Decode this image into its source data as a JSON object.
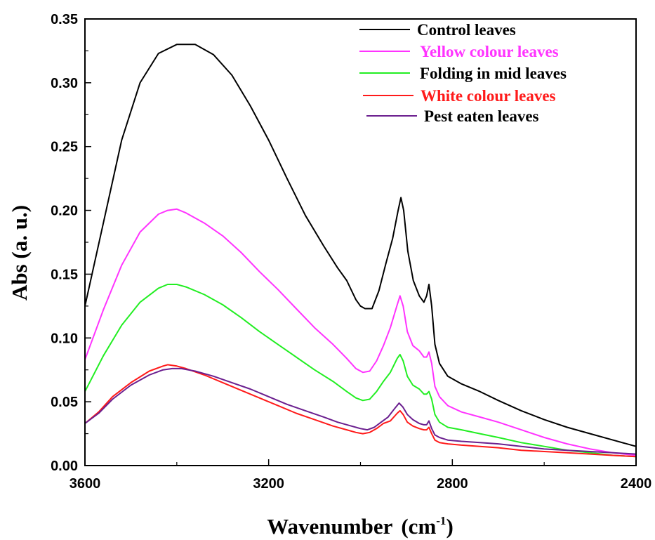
{
  "chart_data": {
    "type": "line",
    "title": "",
    "xlabel": "Wavenumber",
    "xlabel_unit": "(cm",
    "xlabel_unit_sup": "-1",
    "xlabel_unit_close": ")",
    "ylabel": "Abs  (a.  u.)",
    "xlim": [
      3600,
      2400
    ],
    "ylim": [
      0,
      0.35
    ],
    "x_reversed": true,
    "x_ticks": [
      3600,
      3200,
      2800,
      2400
    ],
    "x_tick_labels": [
      "3600",
      "3200",
      "2800",
      "2400"
    ],
    "y_ticks": [
      0,
      0.05,
      0.1,
      0.15,
      0.2,
      0.25,
      0.3,
      0.35
    ],
    "y_tick_labels": [
      "0.00",
      "0.05",
      "0.10",
      "0.15",
      "0.20",
      "0.25",
      "0.30",
      "0.35"
    ],
    "grid": false,
    "legend_position": "top-right",
    "series": [
      {
        "name": "Control  leaves",
        "color": "#000000",
        "points": [
          [
            3600,
            0.125
          ],
          [
            3560,
            0.19
          ],
          [
            3520,
            0.255
          ],
          [
            3480,
            0.3
          ],
          [
            3440,
            0.323
          ],
          [
            3400,
            0.33
          ],
          [
            3360,
            0.33
          ],
          [
            3320,
            0.322
          ],
          [
            3280,
            0.306
          ],
          [
            3240,
            0.282
          ],
          [
            3200,
            0.255
          ],
          [
            3160,
            0.225
          ],
          [
            3120,
            0.196
          ],
          [
            3080,
            0.172
          ],
          [
            3050,
            0.155
          ],
          [
            3030,
            0.145
          ],
          [
            3010,
            0.13
          ],
          [
            3000,
            0.125
          ],
          [
            2990,
            0.123
          ],
          [
            2975,
            0.123
          ],
          [
            2960,
            0.137
          ],
          [
            2945,
            0.158
          ],
          [
            2930,
            0.178
          ],
          [
            2918,
            0.2
          ],
          [
            2912,
            0.21
          ],
          [
            2906,
            0.2
          ],
          [
            2897,
            0.168
          ],
          [
            2885,
            0.145
          ],
          [
            2872,
            0.133
          ],
          [
            2862,
            0.128
          ],
          [
            2856,
            0.133
          ],
          [
            2851,
            0.142
          ],
          [
            2845,
            0.125
          ],
          [
            2838,
            0.095
          ],
          [
            2828,
            0.08
          ],
          [
            2810,
            0.07
          ],
          [
            2780,
            0.064
          ],
          [
            2740,
            0.058
          ],
          [
            2700,
            0.051
          ],
          [
            2650,
            0.043
          ],
          [
            2600,
            0.036
          ],
          [
            2550,
            0.03
          ],
          [
            2500,
            0.025
          ],
          [
            2450,
            0.02
          ],
          [
            2400,
            0.015
          ]
        ]
      },
      {
        "name": "Yellow  colour  leaves",
        "color": "#ff33ff",
        "points": [
          [
            3600,
            0.083
          ],
          [
            3560,
            0.122
          ],
          [
            3520,
            0.157
          ],
          [
            3480,
            0.183
          ],
          [
            3440,
            0.197
          ],
          [
            3420,
            0.2
          ],
          [
            3400,
            0.201
          ],
          [
            3380,
            0.198
          ],
          [
            3340,
            0.19
          ],
          [
            3300,
            0.18
          ],
          [
            3260,
            0.167
          ],
          [
            3220,
            0.152
          ],
          [
            3180,
            0.138
          ],
          [
            3140,
            0.123
          ],
          [
            3100,
            0.108
          ],
          [
            3060,
            0.095
          ],
          [
            3030,
            0.084
          ],
          [
            3010,
            0.076
          ],
          [
            2995,
            0.073
          ],
          [
            2980,
            0.074
          ],
          [
            2965,
            0.082
          ],
          [
            2950,
            0.094
          ],
          [
            2935,
            0.108
          ],
          [
            2920,
            0.126
          ],
          [
            2914,
            0.133
          ],
          [
            2907,
            0.125
          ],
          [
            2898,
            0.105
          ],
          [
            2886,
            0.094
          ],
          [
            2872,
            0.09
          ],
          [
            2862,
            0.085
          ],
          [
            2856,
            0.085
          ],
          [
            2851,
            0.089
          ],
          [
            2845,
            0.08
          ],
          [
            2838,
            0.062
          ],
          [
            2828,
            0.054
          ],
          [
            2810,
            0.047
          ],
          [
            2780,
            0.042
          ],
          [
            2740,
            0.038
          ],
          [
            2700,
            0.034
          ],
          [
            2650,
            0.028
          ],
          [
            2600,
            0.022
          ],
          [
            2550,
            0.017
          ],
          [
            2500,
            0.013
          ],
          [
            2450,
            0.01
          ],
          [
            2400,
            0.008
          ]
        ]
      },
      {
        "name": "Folding  in  mid  leaves",
        "color": "#22ee22",
        "points": [
          [
            3600,
            0.058
          ],
          [
            3560,
            0.086
          ],
          [
            3520,
            0.11
          ],
          [
            3480,
            0.128
          ],
          [
            3440,
            0.139
          ],
          [
            3420,
            0.142
          ],
          [
            3400,
            0.142
          ],
          [
            3380,
            0.14
          ],
          [
            3340,
            0.134
          ],
          [
            3300,
            0.126
          ],
          [
            3260,
            0.116
          ],
          [
            3220,
            0.105
          ],
          [
            3180,
            0.095
          ],
          [
            3140,
            0.085
          ],
          [
            3100,
            0.075
          ],
          [
            3060,
            0.066
          ],
          [
            3030,
            0.058
          ],
          [
            3010,
            0.053
          ],
          [
            2995,
            0.051
          ],
          [
            2980,
            0.052
          ],
          [
            2965,
            0.058
          ],
          [
            2950,
            0.066
          ],
          [
            2935,
            0.073
          ],
          [
            2920,
            0.084
          ],
          [
            2914,
            0.087
          ],
          [
            2907,
            0.082
          ],
          [
            2898,
            0.07
          ],
          [
            2886,
            0.063
          ],
          [
            2872,
            0.06
          ],
          [
            2862,
            0.056
          ],
          [
            2856,
            0.056
          ],
          [
            2851,
            0.058
          ],
          [
            2845,
            0.052
          ],
          [
            2838,
            0.04
          ],
          [
            2828,
            0.034
          ],
          [
            2810,
            0.03
          ],
          [
            2780,
            0.028
          ],
          [
            2740,
            0.025
          ],
          [
            2700,
            0.022
          ],
          [
            2650,
            0.018
          ],
          [
            2600,
            0.015
          ],
          [
            2550,
            0.012
          ],
          [
            2500,
            0.01
          ],
          [
            2450,
            0.008
          ],
          [
            2400,
            0.007
          ]
        ]
      },
      {
        "name": "White  colour  leaves",
        "color": "#ff1a1a",
        "points": [
          [
            3600,
            0.033
          ],
          [
            3570,
            0.042
          ],
          [
            3540,
            0.054
          ],
          [
            3500,
            0.065
          ],
          [
            3460,
            0.074
          ],
          [
            3430,
            0.078
          ],
          [
            3420,
            0.079
          ],
          [
            3400,
            0.078
          ],
          [
            3380,
            0.076
          ],
          [
            3340,
            0.071
          ],
          [
            3300,
            0.065
          ],
          [
            3260,
            0.059
          ],
          [
            3220,
            0.053
          ],
          [
            3180,
            0.047
          ],
          [
            3140,
            0.041
          ],
          [
            3100,
            0.036
          ],
          [
            3060,
            0.031
          ],
          [
            3030,
            0.028
          ],
          [
            3010,
            0.026
          ],
          [
            2995,
            0.025
          ],
          [
            2980,
            0.026
          ],
          [
            2965,
            0.029
          ],
          [
            2950,
            0.033
          ],
          [
            2935,
            0.035
          ],
          [
            2920,
            0.041
          ],
          [
            2914,
            0.043
          ],
          [
            2907,
            0.04
          ],
          [
            2898,
            0.034
          ],
          [
            2886,
            0.031
          ],
          [
            2872,
            0.029
          ],
          [
            2862,
            0.028
          ],
          [
            2856,
            0.028
          ],
          [
            2851,
            0.03
          ],
          [
            2845,
            0.025
          ],
          [
            2838,
            0.02
          ],
          [
            2828,
            0.018
          ],
          [
            2810,
            0.017
          ],
          [
            2780,
            0.016
          ],
          [
            2740,
            0.015
          ],
          [
            2700,
            0.014
          ],
          [
            2650,
            0.012
          ],
          [
            2600,
            0.011
          ],
          [
            2550,
            0.01
          ],
          [
            2500,
            0.009
          ],
          [
            2450,
            0.008
          ],
          [
            2400,
            0.007
          ]
        ]
      },
      {
        "name": "Pest eaten  leaves",
        "color": "#6b1f8f",
        "points": [
          [
            3600,
            0.033
          ],
          [
            3570,
            0.041
          ],
          [
            3540,
            0.052
          ],
          [
            3500,
            0.063
          ],
          [
            3460,
            0.071
          ],
          [
            3430,
            0.075
          ],
          [
            3410,
            0.076
          ],
          [
            3390,
            0.076
          ],
          [
            3360,
            0.074
          ],
          [
            3320,
            0.07
          ],
          [
            3280,
            0.065
          ],
          [
            3240,
            0.06
          ],
          [
            3200,
            0.054
          ],
          [
            3160,
            0.048
          ],
          [
            3120,
            0.043
          ],
          [
            3080,
            0.038
          ],
          [
            3050,
            0.034
          ],
          [
            3020,
            0.031
          ],
          [
            3000,
            0.029
          ],
          [
            2985,
            0.028
          ],
          [
            2970,
            0.03
          ],
          [
            2955,
            0.034
          ],
          [
            2940,
            0.038
          ],
          [
            2925,
            0.045
          ],
          [
            2916,
            0.049
          ],
          [
            2908,
            0.046
          ],
          [
            2898,
            0.04
          ],
          [
            2886,
            0.036
          ],
          [
            2872,
            0.033
          ],
          [
            2862,
            0.032
          ],
          [
            2856,
            0.032
          ],
          [
            2851,
            0.035
          ],
          [
            2845,
            0.029
          ],
          [
            2838,
            0.024
          ],
          [
            2828,
            0.022
          ],
          [
            2810,
            0.02
          ],
          [
            2780,
            0.019
          ],
          [
            2740,
            0.018
          ],
          [
            2700,
            0.017
          ],
          [
            2650,
            0.015
          ],
          [
            2600,
            0.013
          ],
          [
            2550,
            0.012
          ],
          [
            2500,
            0.011
          ],
          [
            2450,
            0.01
          ],
          [
            2400,
            0.009
          ]
        ]
      }
    ]
  }
}
